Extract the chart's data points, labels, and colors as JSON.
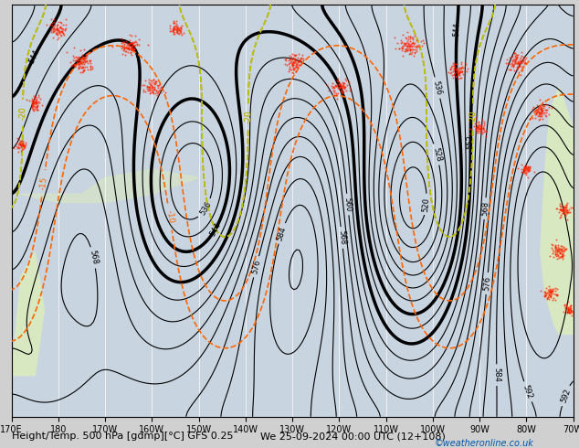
{
  "title": "Height/Temp. 500 hPa [gdmp][°C] GFS 0.25",
  "subtitle": "We 25-09-2024 00:00 UTC (12+108)",
  "credit": "©weatheronline.co.uk",
  "xlabel_ticks": [
    "170E",
    "180",
    "170W",
    "160W",
    "150W",
    "140W",
    "130W",
    "120W",
    "110W",
    "100W",
    "90W",
    "80W",
    "70W"
  ],
  "bg_color": "#d0d0d0",
  "land_color": "#e8e8e8",
  "water_color": "#d0d8e8",
  "z500_color": "#000000",
  "temp_neg_color": "#ff6600",
  "temp_mid_color": "#99cc00",
  "temp_low_color": "#00cccc",
  "temp_vlow_color": "#0066ff",
  "rain_red_color": "#ff2200",
  "title_fontsize": 9,
  "label_fontsize": 7,
  "figsize": [
    6.34,
    4.9
  ],
  "dpi": 100
}
